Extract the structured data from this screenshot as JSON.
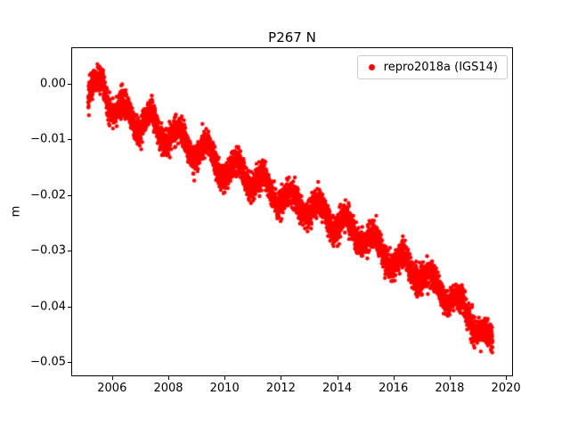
{
  "figure": {
    "title": "P267 N",
    "ylabel": "m",
    "background_color": "#ffffff",
    "axes_edge_color": "#000000"
  },
  "legend": {
    "label": "repro2018a (IGS14)",
    "marker_color": "#ff0000",
    "position": "upper right"
  },
  "axes": {
    "xlim": [
      2004.55,
      2020.25
    ],
    "ylim": [
      -0.0525,
      0.0065
    ],
    "xticks": [
      2006,
      2008,
      2010,
      2012,
      2014,
      2016,
      2018,
      2020
    ],
    "xtick_labels": [
      "2006",
      "2008",
      "2010",
      "2012",
      "2014",
      "2016",
      "2018",
      "2020"
    ],
    "yticks": [
      0.0,
      -0.01,
      -0.02,
      -0.03,
      -0.04,
      -0.05
    ],
    "ytick_labels": [
      "0.00",
      "−0.01",
      "−0.02",
      "−0.03",
      "−0.04",
      "−0.05"
    ],
    "grid": false
  },
  "chart_data": {
    "type": "scatter",
    "title": "P267 N",
    "xlabel": "",
    "ylabel": "m",
    "xlim": [
      2004.55,
      2020.25
    ],
    "ylim": [
      -0.0525,
      0.0065
    ],
    "legend_position": "upper right",
    "series": [
      {
        "name": "repro2018a (IGS14)",
        "color": "#ff0000",
        "marker": "dot",
        "marker_radius_px": 2.2,
        "x_start": 2005.15,
        "x_end": 2019.52,
        "points_per_year": 330,
        "trend_anchors": [
          [
            2005.15,
            -0.0025
          ],
          [
            2005.45,
            -0.001
          ],
          [
            2005.65,
            0.001
          ],
          [
            2005.9,
            -0.003
          ],
          [
            2006.2,
            -0.0055
          ],
          [
            2006.6,
            -0.005
          ],
          [
            2007.0,
            -0.0075
          ],
          [
            2007.4,
            -0.007
          ],
          [
            2007.8,
            -0.009
          ],
          [
            2008.2,
            -0.0095
          ],
          [
            2008.6,
            -0.01
          ],
          [
            2009.0,
            -0.0125
          ],
          [
            2009.4,
            -0.012
          ],
          [
            2009.8,
            -0.015
          ],
          [
            2010.2,
            -0.016
          ],
          [
            2010.6,
            -0.015
          ],
          [
            2011.0,
            -0.0175
          ],
          [
            2011.4,
            -0.018
          ],
          [
            2011.8,
            -0.02
          ],
          [
            2012.2,
            -0.021
          ],
          [
            2012.6,
            -0.0215
          ],
          [
            2013.0,
            -0.022
          ],
          [
            2013.4,
            -0.023
          ],
          [
            2013.8,
            -0.0245
          ],
          [
            2014.2,
            -0.025
          ],
          [
            2014.6,
            -0.027
          ],
          [
            2015.0,
            -0.0275
          ],
          [
            2015.4,
            -0.029
          ],
          [
            2015.8,
            -0.031
          ],
          [
            2016.2,
            -0.032
          ],
          [
            2016.6,
            -0.0335
          ],
          [
            2017.0,
            -0.034
          ],
          [
            2017.4,
            -0.036
          ],
          [
            2017.8,
            -0.0375
          ],
          [
            2018.2,
            -0.039
          ],
          [
            2018.6,
            -0.0415
          ],
          [
            2019.0,
            -0.043
          ],
          [
            2019.3,
            -0.046
          ],
          [
            2019.52,
            -0.047
          ]
        ],
        "seasonal_amplitude": 0.0017,
        "seasonal_phase": 0.12,
        "noise_sigma": 0.0012,
        "seed": 42
      }
    ]
  }
}
